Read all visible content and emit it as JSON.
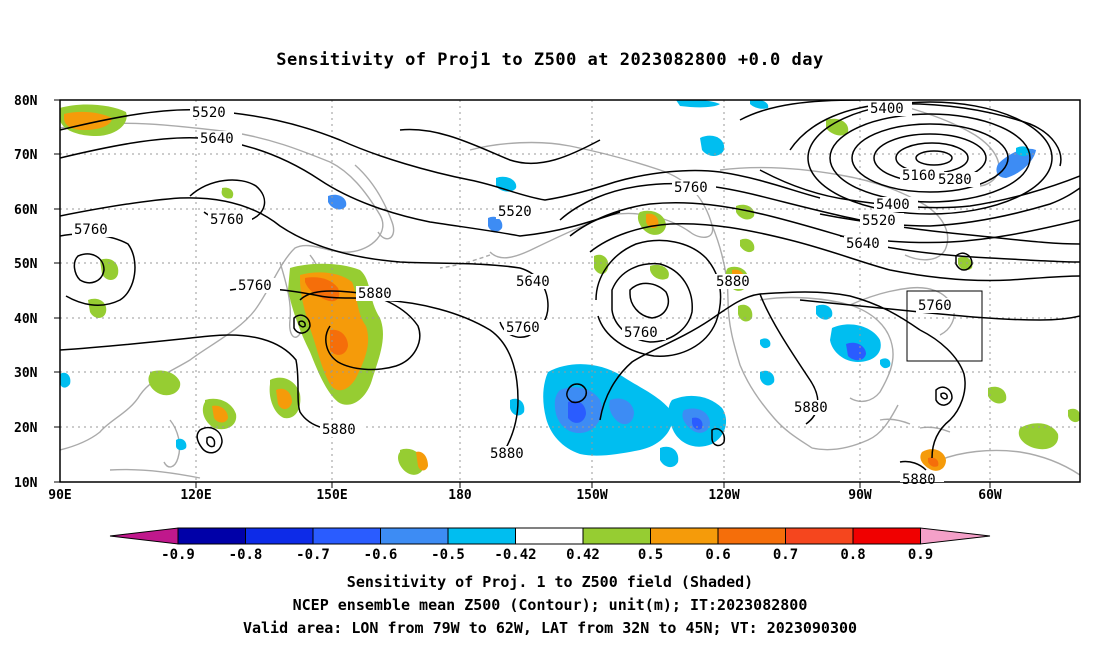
{
  "title": "Sensitivity of Proj1 to Z500 at 2023082800 +0.0 day",
  "lat_labels": [
    "80N",
    "70N",
    "60N",
    "50N",
    "40N",
    "30N",
    "20N",
    "10N"
  ],
  "lon_labels": [
    "90E",
    "120E",
    "150E",
    "180",
    "150W",
    "120W",
    "90W",
    "60W"
  ],
  "contours": [
    {
      "label": "5520",
      "note": "upper-left"
    },
    {
      "label": "5640",
      "note": "upper-left"
    },
    {
      "label": "5760",
      "note": "west"
    },
    {
      "label": "5760",
      "note": "central-west"
    },
    {
      "label": "5760",
      "note": "asia"
    },
    {
      "label": "5880",
      "note": "japan-high"
    },
    {
      "label": "5880",
      "note": "pacific-south"
    },
    {
      "label": "5880",
      "note": "central-south"
    },
    {
      "label": "5520",
      "note": "central"
    },
    {
      "label": "5640",
      "note": "central"
    },
    {
      "label": "5760",
      "note": "central"
    },
    {
      "label": "5760",
      "note": "low"
    },
    {
      "label": "5760",
      "note": "ridge"
    },
    {
      "label": "5880",
      "note": "east-pacific"
    },
    {
      "label": "5880",
      "note": "atlantic"
    },
    {
      "label": "5880",
      "note": "southeast"
    },
    {
      "label": "5400",
      "note": "north-east"
    },
    {
      "label": "5160",
      "note": "low-center"
    },
    {
      "label": "5280",
      "note": "north-east"
    },
    {
      "label": "5400",
      "note": "east"
    },
    {
      "label": "5520",
      "note": "east"
    },
    {
      "label": "5640",
      "note": "east"
    },
    {
      "label": "5760",
      "note": "valid-area"
    }
  ],
  "colorbar": {
    "ticks": [
      "-0.9",
      "-0.8",
      "-0.7",
      "-0.6",
      "-0.5",
      "-0.42",
      "0.42",
      "0.5",
      "0.6",
      "0.7",
      "0.8",
      "0.9"
    ],
    "colors": [
      "#0000a8",
      "#0d2be8",
      "#2a5cff",
      "#3d8cf4",
      "#00bef0",
      "#ffffff",
      "#96cd32",
      "#f59b0a",
      "#f56e0a",
      "#f5461e",
      "#f00000"
    ],
    "left_arrow": "#c0188c",
    "right_arrow": "#f4a0c8"
  },
  "captions": [
    "Sensitivity of Proj. 1 to Z500 field (Shaded)",
    "NCEP ensemble mean Z500 (Contour); unit(m); IT:2023082800",
    "Valid area: LON from 79W to 62W, LAT from 32N to 45N; VT: 2023090300"
  ],
  "valid_area": {
    "lon_from": "79W",
    "lon_to": "62W",
    "lat_from": "32N",
    "lat_to": "45N"
  },
  "shading_colors": {
    "green": "#96cd32",
    "orange": "#f59b0a",
    "deep_orange": "#f56e0a",
    "red": "#f5461e",
    "light_blue": "#00bef0",
    "blue": "#3d8cf4",
    "dark_blue": "#2a5cff"
  },
  "coast_color": "#aaaaaa"
}
